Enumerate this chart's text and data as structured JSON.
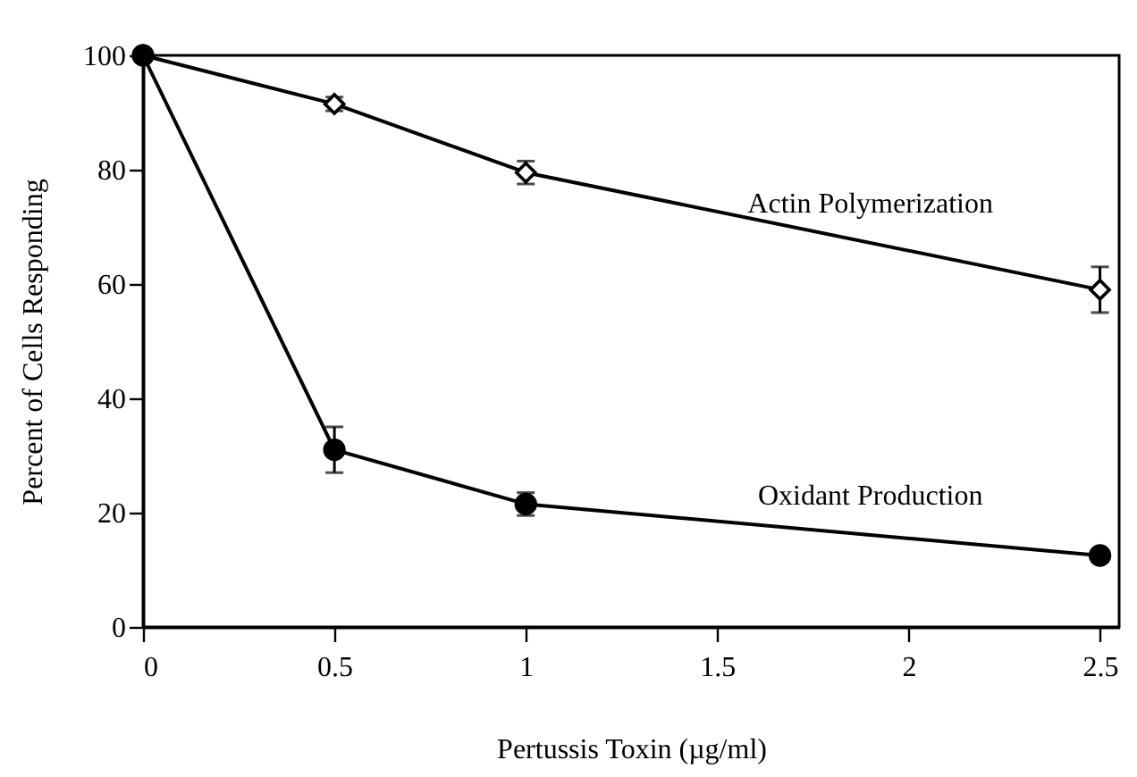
{
  "chart_data": {
    "type": "line",
    "xlabel": "Pertussis Toxin (µg/ml)",
    "ylabel": "Percent of Cells Responding",
    "xlim": [
      0,
      2.55
    ],
    "xticks": [
      0,
      0.5,
      1,
      1.5,
      2,
      2.5
    ],
    "ylim": [
      0,
      100
    ],
    "yticks": [
      0,
      20,
      40,
      60,
      80,
      100
    ],
    "grid": false,
    "series": [
      {
        "name": "Actin Polymerization",
        "color": "#000000",
        "marker": "diamond",
        "x": [
          0,
          0.5,
          1,
          2.5
        ],
        "values": [
          100,
          91.5,
          79.5,
          59
        ],
        "errors": [
          null,
          1.2,
          2,
          4
        ]
      },
      {
        "name": "Oxidant Production",
        "color": "#000000",
        "marker": "circle",
        "x": [
          0,
          0.5,
          1,
          2.5
        ],
        "values": [
          100,
          31,
          21.5,
          12.5
        ],
        "errors": [
          null,
          4,
          2,
          null
        ]
      }
    ]
  }
}
